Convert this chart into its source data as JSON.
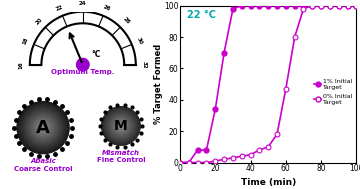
{
  "series1_x": [
    0,
    5,
    10,
    15,
    20,
    25,
    30,
    35,
    40,
    45,
    50,
    55,
    60,
    65,
    70,
    75,
    80,
    85,
    90,
    95,
    100
  ],
  "series1_y": [
    0,
    0,
    8,
    8,
    34,
    70,
    98,
    100,
    100,
    100,
    100,
    100,
    100,
    100,
    100,
    100,
    100,
    100,
    100,
    100,
    100
  ],
  "series2_x": [
    0,
    5,
    10,
    15,
    20,
    25,
    30,
    35,
    40,
    45,
    50,
    55,
    60,
    65,
    70,
    75,
    80,
    85,
    90,
    95,
    100
  ],
  "series2_y": [
    0,
    0,
    0,
    0,
    1,
    2,
    3,
    4,
    5,
    8,
    10,
    18,
    47,
    80,
    98,
    100,
    100,
    100,
    100,
    100,
    100
  ],
  "color_line": "#cc00cc",
  "color_temp": "#00aaaa",
  "xlabel": "Time (min)",
  "ylabel": "% Target Formed",
  "temp_label": "22 °C",
  "legend1": "1% Initial\nTarget",
  "legend2": "0% Initial\nTarget",
  "xlim": [
    0,
    100
  ],
  "ylim": [
    0,
    100
  ],
  "xticks": [
    0,
    20,
    40,
    60,
    80,
    100
  ],
  "yticks": [
    0,
    20,
    40,
    60,
    80,
    100
  ],
  "gauge_ticks": [
    16,
    18,
    20,
    22,
    24,
    26,
    28,
    30,
    32
  ],
  "needle_val": 22,
  "val_min": 16,
  "val_max": 32,
  "optimum_label": "Optimum Temp.",
  "abasic_italic": "Abasic",
  "abasic_bold": "Coarse Control",
  "mismatch_italic": "Mismatch",
  "mismatch_bold": "Fine Control",
  "purple": "#9900cc",
  "magenta": "#cc00cc"
}
